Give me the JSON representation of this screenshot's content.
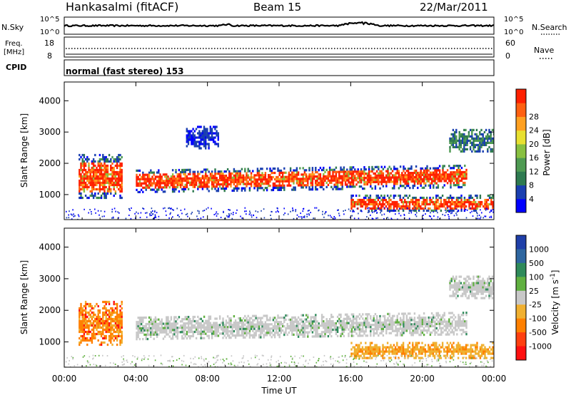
{
  "header": {
    "station": "Hankasalmi (fitACF)",
    "beam": "Beam 15",
    "date": "22/Mar/2011"
  },
  "top_panels": {
    "nsky": {
      "label": "N.Sky",
      "right_label": "N.Search",
      "ticks_left": [
        "10^5",
        "10^0"
      ],
      "ticks_right": [
        "10^5",
        "10^0"
      ]
    },
    "freq": {
      "label_line1": "Freq.",
      "label_line2": "[MHz]",
      "right_label": "Nave",
      "ticks_left": [
        "18",
        "8"
      ],
      "ticks_right": [
        "60",
        "0"
      ]
    },
    "cpid": {
      "label": "CPID",
      "mode_text": "normal (fast stereo) 153"
    }
  },
  "chart_data": [
    {
      "type": "heatmap",
      "ylabel": "Slant Range [km]",
      "xlabel": "",
      "ylim": [
        200,
        4600
      ],
      "yticks": [
        1000,
        2000,
        3000,
        4000
      ],
      "x_ticks": [
        "00:00",
        "04:00",
        "08:00",
        "12:00",
        "16:00",
        "20:00",
        "00:00"
      ],
      "colorbar": {
        "label": "Power [dB]",
        "ticks": [
          4,
          8,
          12,
          16,
          20,
          24,
          28
        ],
        "colors": [
          "#0000ff",
          "#1a3fb0",
          "#2e7a50",
          "#4e9a52",
          "#88c040",
          "#e8e030",
          "#ffa020",
          "#ff6010",
          "#ff2000"
        ]
      },
      "regions": [
        {
          "name": "dayside-patch",
          "t": [
            0.8,
            3.2
          ],
          "r": [
            900,
            2300
          ],
          "level": "high"
        },
        {
          "name": "main-band",
          "t": [
            4.0,
            22.5
          ],
          "r": [
            1100,
            1800
          ],
          "level": "high"
        },
        {
          "name": "lower-band",
          "t": [
            16.0,
            24.0
          ],
          "r": [
            500,
            1000
          ],
          "level": "high"
        },
        {
          "name": "upper-scatter",
          "t": [
            6.8,
            8.6
          ],
          "r": [
            2500,
            3200
          ],
          "level": "low"
        },
        {
          "name": "late-upper-band",
          "t": [
            21.5,
            24.0
          ],
          "r": [
            2400,
            3100
          ],
          "level": "medium"
        }
      ]
    },
    {
      "type": "heatmap",
      "ylabel": "Slant Range [km]",
      "xlabel": "Time UT",
      "ylim": [
        200,
        4600
      ],
      "yticks": [
        1000,
        2000,
        3000,
        4000
      ],
      "x_ticks": [
        "00:00",
        "04:00",
        "08:00",
        "12:00",
        "16:00",
        "20:00",
        "00:00"
      ],
      "colorbar": {
        "label": "Velocity [m s^-1]",
        "ticks": [
          1000,
          500,
          100,
          25,
          -25,
          -100,
          -500,
          -1000
        ],
        "colors": [
          "#1f3fa8",
          "#2e66a0",
          "#2e8a5a",
          "#60b040",
          "#c8c8c8",
          "#f0b030",
          "#ff8000",
          "#ff4010",
          "#ff1010"
        ]
      },
      "regions": [
        {
          "name": "dayside-patch",
          "t": [
            0.8,
            3.2
          ],
          "r": [
            900,
            2300
          ],
          "level": "away"
        },
        {
          "name": "main-band",
          "t": [
            4.0,
            22.5
          ],
          "r": [
            1100,
            1800
          ],
          "level": "near-zero"
        },
        {
          "name": "lower-band",
          "t": [
            16.0,
            24.0
          ],
          "r": [
            500,
            1000
          ],
          "level": "toward"
        },
        {
          "name": "late-upper-band",
          "t": [
            21.5,
            24.0
          ],
          "r": [
            2400,
            3100
          ],
          "level": "near-zero"
        }
      ]
    }
  ]
}
